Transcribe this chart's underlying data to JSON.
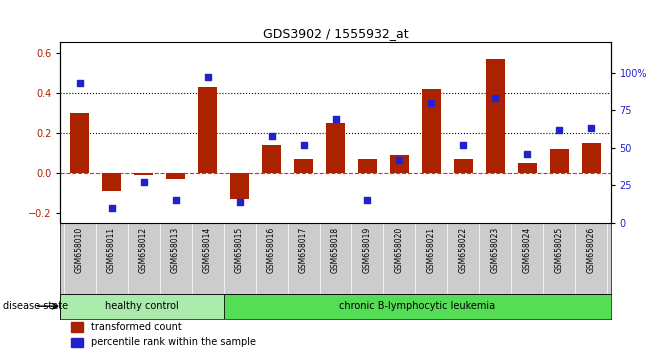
{
  "title": "GDS3902 / 1555932_at",
  "samples": [
    "GSM658010",
    "GSM658011",
    "GSM658012",
    "GSM658013",
    "GSM658014",
    "GSM658015",
    "GSM658016",
    "GSM658017",
    "GSM658018",
    "GSM658019",
    "GSM658020",
    "GSM658021",
    "GSM658022",
    "GSM658023",
    "GSM658024",
    "GSM658025",
    "GSM658026"
  ],
  "bar_values": [
    0.3,
    -0.09,
    -0.01,
    -0.03,
    0.43,
    -0.13,
    0.14,
    0.07,
    0.25,
    0.07,
    0.09,
    0.42,
    0.07,
    0.57,
    0.05,
    0.12,
    0.15
  ],
  "dot_values": [
    93,
    10,
    27,
    15,
    97,
    14,
    58,
    52,
    69,
    15,
    42,
    80,
    52,
    83,
    46,
    62,
    63
  ],
  "bar_color": "#aa2200",
  "dot_color": "#2222cc",
  "ylim_left": [
    -0.25,
    0.65
  ],
  "ylim_right": [
    0,
    120
  ],
  "yticks_left": [
    -0.2,
    0.0,
    0.2,
    0.4,
    0.6
  ],
  "yticks_right": [
    0,
    25,
    50,
    75,
    100
  ],
  "yticklabels_right": [
    "0",
    "25",
    "50",
    "75",
    "100%"
  ],
  "hlines": [
    0.2,
    0.4
  ],
  "zero_line_color": "#cc3333",
  "healthy_control_count": 5,
  "group1_label": "healthy control",
  "group2_label": "chronic B-lymphocytic leukemia",
  "group1_color": "#aaeaaa",
  "group2_color": "#55dd55",
  "disease_state_label": "disease state",
  "legend_bar_label": "transformed count",
  "legend_dot_label": "percentile rank within the sample",
  "tick_label_bg": "#cccccc"
}
